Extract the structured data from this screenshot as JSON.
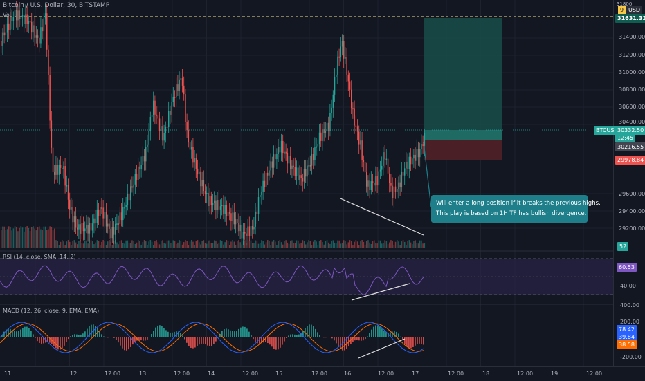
{
  "colors": {
    "background": "#131722",
    "grid": "#1e222d",
    "candle_up": "#26a69a",
    "candle_down": "#ef5350",
    "rsi_line": "#7e57c2",
    "macd_line": "#2962ff",
    "signal_line": "#ff6d00",
    "target_zone": "#184a47",
    "stop_zone": "#4a1f25",
    "annotation": "#1e7f8b",
    "highlight_yellow": "#f0e68c"
  },
  "header": {
    "symbol_line": "Bitcoin / U.S. Dollar, 30, BITSTAMP",
    "vol_label": "Vol",
    "currency": "USD",
    "corner_value": "31800",
    "corner_badge": "9"
  },
  "price_axis": {
    "ticks": [
      "31400.00",
      "31200.00",
      "31000.00",
      "30800.00",
      "30600.00",
      "30400.00",
      "29600.00",
      "29400.00",
      "29200.00"
    ],
    "top_price_tag": "31631.33",
    "symbol_tag": "BTCUSD",
    "current_price": "30332.50",
    "countdown": "12:45",
    "entry_price": "30216.55",
    "stop_price": "29978.84",
    "vol_tag": "52"
  },
  "rsi": {
    "label": "RSI (14, close, SMA, 14, 2)",
    "value": "60.53",
    "tick": "40.00"
  },
  "macd": {
    "label": "MACD (12, 26, close, 9, EMA, EMA)",
    "ticks": [
      "400.00",
      "200.00",
      "-200.00"
    ],
    "macd_value": "78.42",
    "signal_value": "39.84",
    "hist_value": "38.58"
  },
  "time_axis": {
    "labels": [
      "11",
      "12",
      "12:00",
      "13",
      "12:00",
      "14",
      "12:00",
      "15",
      "12:00",
      "16",
      "12:00",
      "17",
      "12:00",
      "18",
      "12:00",
      "19",
      "12:00"
    ]
  },
  "annotation": {
    "line1": "Will enter a long position if it breaks the previous highs.",
    "line2": "This play is based on 1H TF has bullish divergence."
  }
}
